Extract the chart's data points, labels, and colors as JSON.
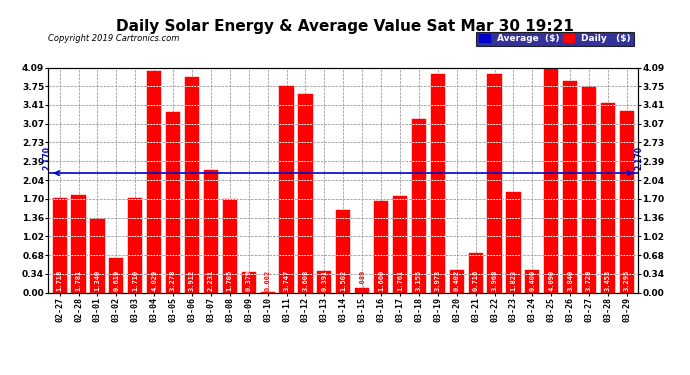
{
  "title": "Daily Solar Energy & Average Value Sat Mar 30 19:21",
  "copyright": "Copyright 2019 Cartronics.com",
  "categories": [
    "02-27",
    "02-28",
    "03-01",
    "03-02",
    "03-03",
    "03-04",
    "03-05",
    "03-06",
    "03-07",
    "03-08",
    "03-09",
    "03-10",
    "03-11",
    "03-12",
    "03-13",
    "03-14",
    "03-15",
    "03-16",
    "03-17",
    "03-18",
    "03-19",
    "03-20",
    "03-21",
    "03-22",
    "03-23",
    "03-24",
    "03-25",
    "03-26",
    "03-27",
    "03-28",
    "03-29"
  ],
  "values": [
    1.718,
    1.781,
    1.34,
    0.619,
    1.71,
    4.029,
    3.278,
    3.912,
    2.231,
    1.705,
    0.379,
    0.002,
    3.747,
    3.608,
    0.391,
    1.502,
    0.089,
    1.66,
    1.761,
    3.155,
    3.973,
    0.402,
    0.716,
    3.968,
    1.823,
    0.4,
    4.09,
    3.84,
    3.728,
    3.453,
    3.295
  ],
  "average": 2.17,
  "bar_color": "#FF0000",
  "average_line_color": "#0000CD",
  "yticks": [
    0.0,
    0.34,
    0.68,
    1.02,
    1.36,
    1.7,
    2.04,
    2.39,
    2.73,
    3.07,
    3.41,
    3.75,
    4.09
  ],
  "ymax": 4.09,
  "background_color": "#FFFFFF",
  "plot_bg_color": "#FFFFFF",
  "grid_color": "#888888",
  "title_fontsize": 11,
  "avg_label": "2.170",
  "legend_avg_color": "#0000CD",
  "legend_daily_color": "#FF0000",
  "legend_bg_color": "#000080"
}
